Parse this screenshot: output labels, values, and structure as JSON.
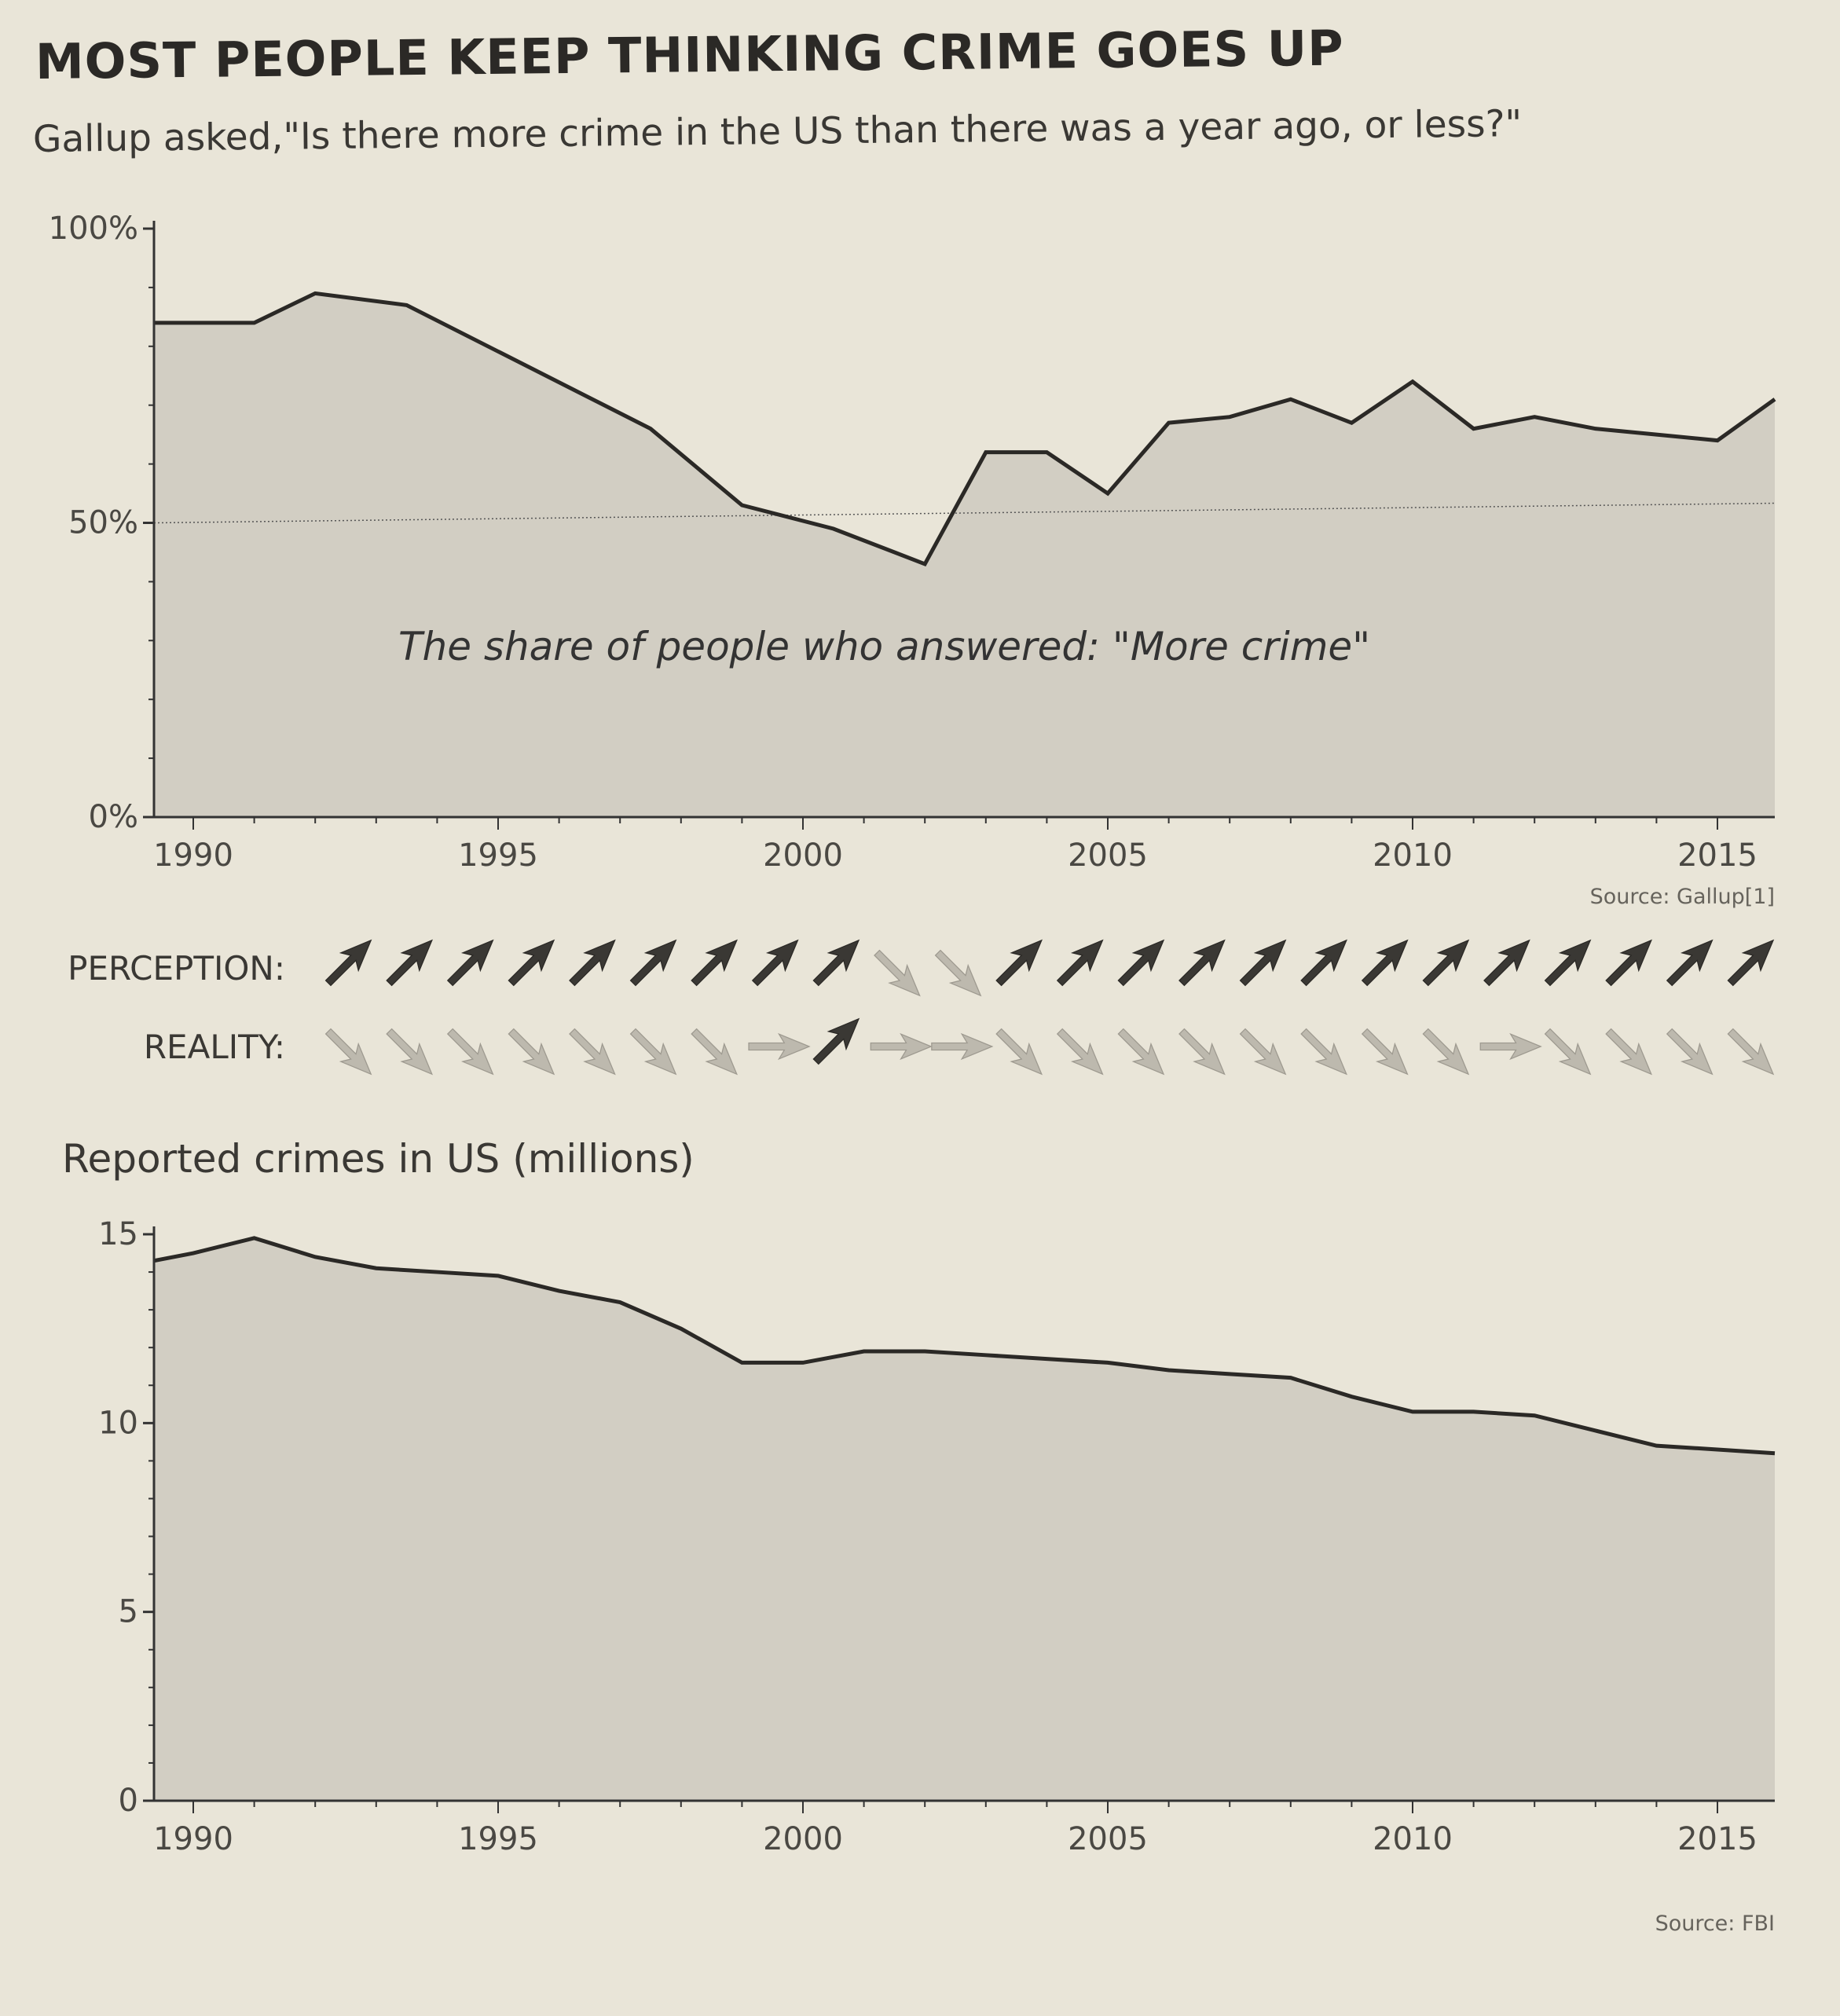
{
  "title": "MOST PEOPLE KEEP THINKING CRIME GOES UP",
  "subtitle": "Gallup asked,\"Is there more crime in the US than there was a year ago, or less?\"",
  "chart_data": [
    {
      "type": "area",
      "title": "",
      "annotation": "The share of people who answered: \"More crime\"",
      "x_ticks": [
        "1990",
        "1995",
        "2000",
        "2005",
        "2010",
        "2015"
      ],
      "y_ticks": [
        "0%",
        "50%",
        "100%"
      ],
      "ylim": [
        0,
        100
      ],
      "xlim": [
        1989,
        2016
      ],
      "grid": "50% line only (dotted)",
      "source": "Source: Gallup[1]",
      "x": [
        1989,
        1991,
        1992,
        1993.5,
        1997.5,
        1999,
        2000.5,
        2002,
        2003,
        2004,
        2005,
        2006,
        2007,
        2008,
        2009,
        2010,
        2011,
        2012,
        2013,
        2014,
        2015,
        2016
      ],
      "values": [
        84,
        84,
        89,
        87,
        66,
        53,
        49,
        43,
        62,
        62,
        55,
        67,
        68,
        71,
        67,
        74,
        66,
        68,
        66,
        65,
        64,
        71
      ],
      "colors": {
        "line": "#2b2926",
        "fill": "#d2cec3"
      }
    },
    {
      "type": "area",
      "title": "Reported crimes in US (millions)",
      "x_ticks": [
        "1990",
        "1995",
        "2000",
        "2005",
        "2010",
        "2015"
      ],
      "y_ticks": [
        "0",
        "5",
        "10",
        "15"
      ],
      "ylim": [
        0,
        15
      ],
      "xlim": [
        1989,
        2016
      ],
      "source": "Source: FBI",
      "x": [
        1989,
        1990,
        1991,
        1992,
        1993,
        1994,
        1995,
        1996,
        1997,
        1998,
        1999,
        2000,
        2001,
        2002,
        2003,
        2004,
        2005,
        2006,
        2007,
        2008,
        2009,
        2010,
        2011,
        2012,
        2013,
        2014,
        2015,
        2016
      ],
      "values": [
        14.3,
        14.5,
        14.9,
        14.4,
        14.1,
        14.0,
        13.9,
        13.5,
        13.2,
        12.5,
        11.6,
        11.6,
        11.9,
        11.9,
        11.8,
        11.7,
        11.6,
        11.4,
        11.3,
        11.2,
        10.7,
        10.3,
        10.3,
        10.2,
        9.8,
        9.4,
        9.3,
        9.2
      ],
      "colors": {
        "line": "#2b2926",
        "fill": "#d2cec3"
      }
    }
  ],
  "perception": {
    "label": "PERCEPTION:",
    "arrows": [
      "up",
      "up",
      "up",
      "up",
      "up",
      "up",
      "up",
      "up",
      "up",
      "down",
      "down",
      "up",
      "up",
      "up",
      "up",
      "up",
      "up",
      "up",
      "up",
      "up",
      "up",
      "up",
      "up",
      "up"
    ]
  },
  "reality": {
    "label": "REALITY:",
    "arrows": [
      "down",
      "down",
      "down",
      "down",
      "down",
      "down",
      "down",
      "flat",
      "up",
      "flat",
      "flat",
      "down",
      "down",
      "down",
      "down",
      "down",
      "down",
      "down",
      "down",
      "flat",
      "down",
      "down",
      "down",
      "down"
    ]
  },
  "arrow_colors": {
    "up": "#3a3834",
    "down": "#bdb9ae",
    "flat": "#bdb9ae"
  }
}
